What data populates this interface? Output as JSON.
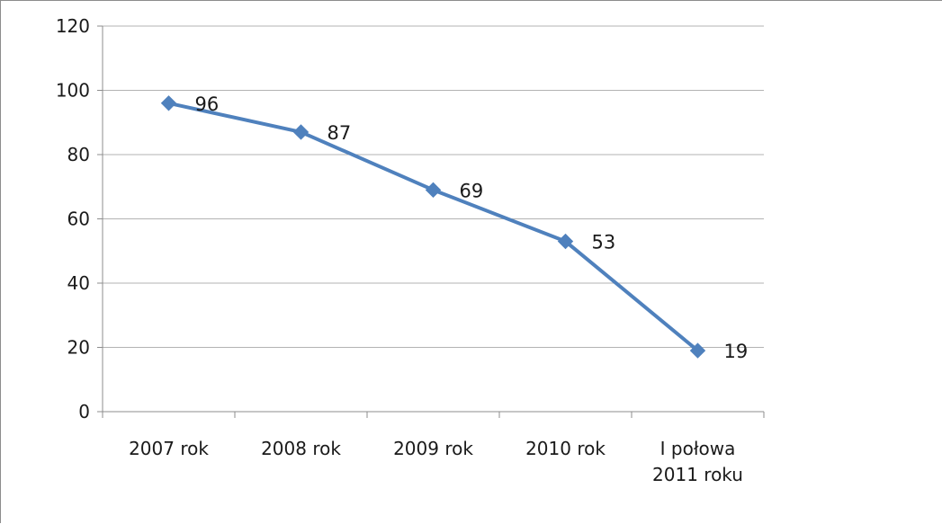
{
  "chart_data": {
    "type": "line",
    "categories": [
      "2007 rok",
      "2008 rok",
      "2009 rok",
      "2010 rok",
      "I połowa\n2011 roku"
    ],
    "values": [
      96,
      87,
      69,
      53,
      19
    ],
    "data_labels": [
      "96",
      "87",
      "69",
      "53",
      "19"
    ],
    "yticks": [
      "0",
      "20",
      "40",
      "60",
      "80",
      "100",
      "120"
    ],
    "ylim": [
      0,
      120
    ],
    "y_step": 20,
    "grid": true,
    "legend": false,
    "title": "",
    "xlabel": "",
    "ylabel": "",
    "series_color": "#4f81bd",
    "grid_color": "#b3b3b3",
    "axis_color": "#8c8c8c",
    "marker": "diamond"
  }
}
